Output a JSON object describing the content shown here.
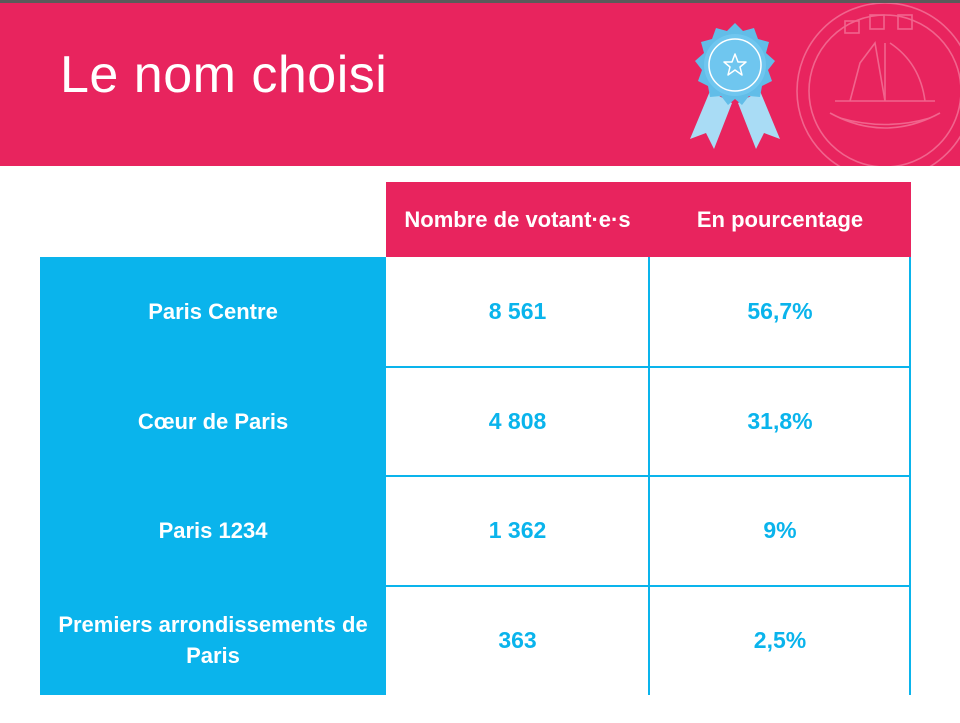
{
  "slide": {
    "title": "Le nom choisi"
  },
  "table": {
    "headers": {
      "count": "Nombre de votant·e·s",
      "percent": "En pourcentage"
    },
    "rows": [
      {
        "name": "Paris Centre",
        "count": "8 561",
        "percent": "56,7%"
      },
      {
        "name": "Cœur de Paris",
        "count": "4 808",
        "percent": "31,8%"
      },
      {
        "name": "Paris 1234",
        "count": "1 362",
        "percent": "9%"
      },
      {
        "name": "Premiers arrondissements de Paris",
        "count": "363",
        "percent": "2,5%"
      }
    ]
  },
  "colors": {
    "pink": "#e8245e",
    "blue": "#0ab4ec",
    "ribbon_light": "#a9dcf5",
    "ribbon_dark": "#62bde8"
  },
  "icons": {
    "ribbon": "award-ribbon-icon",
    "seal": "paris-seal-icon"
  }
}
